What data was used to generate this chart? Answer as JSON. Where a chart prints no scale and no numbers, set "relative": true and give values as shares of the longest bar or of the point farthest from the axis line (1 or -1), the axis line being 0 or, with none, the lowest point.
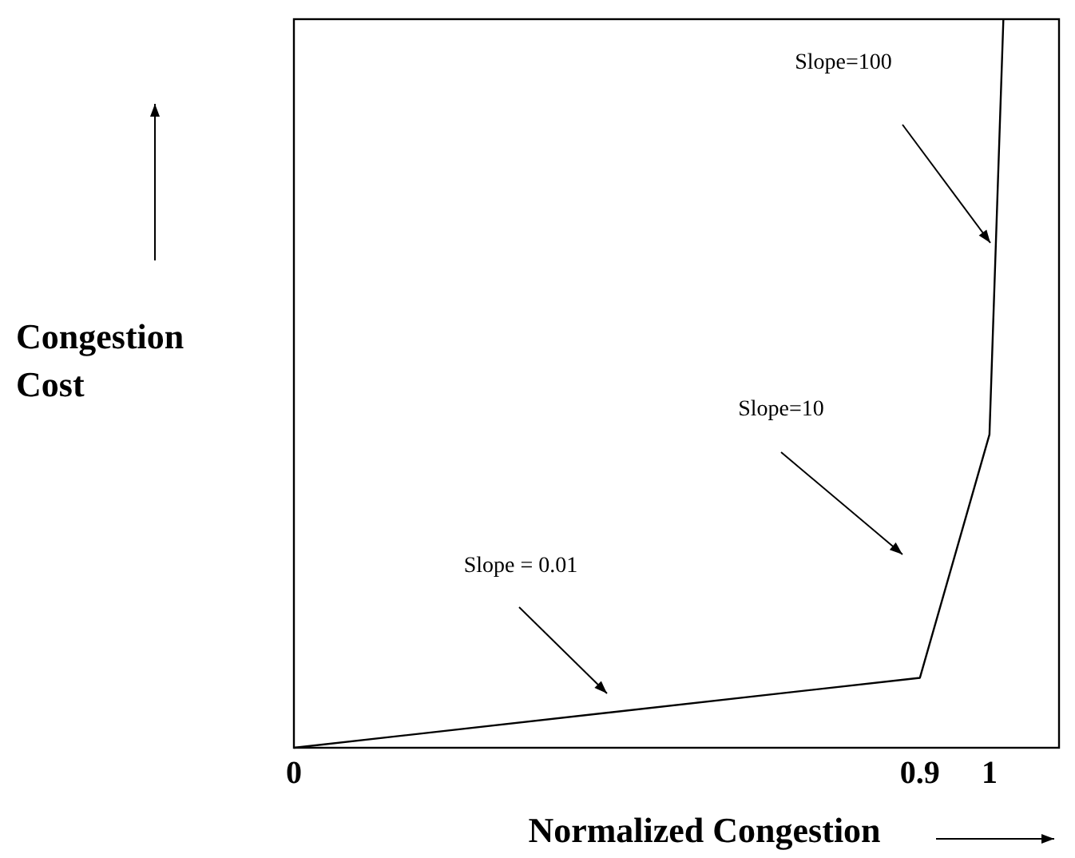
{
  "chart_data": {
    "type": "line",
    "relative": true,
    "xlabel": "Normalized Congestion",
    "ylabel": "Congestion Cost",
    "x": [
      0,
      0.9,
      1,
      1.02
    ],
    "series": [
      {
        "color": "#000000",
        "values": [
          0,
          0.096,
          0.43,
          1
        ]
      }
    ],
    "xlim": [
      0,
      1.1
    ],
    "xticks": [
      0,
      0.9,
      1
    ],
    "tick_labels": "x",
    "grid": false,
    "line_style": "solid",
    "annotations": [
      "Slope = 0.01",
      "Slope=10",
      "Slope=100"
    ]
  }
}
